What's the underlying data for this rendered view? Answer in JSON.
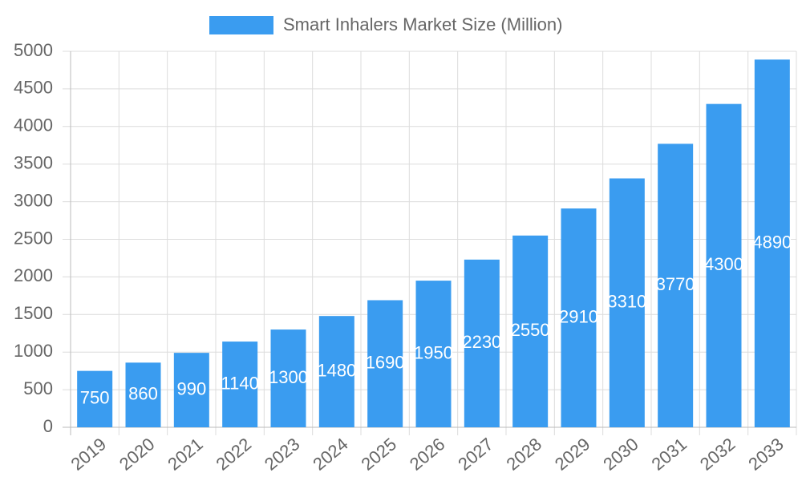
{
  "chart_data": {
    "type": "bar",
    "categories": [
      "2019",
      "2020",
      "2021",
      "2022",
      "2023",
      "2024",
      "2025",
      "2026",
      "2027",
      "2028",
      "2029",
      "2030",
      "2031",
      "2032",
      "2033"
    ],
    "series": [
      {
        "name": "Smart Inhalers Market Size (Million)",
        "color": "#3a9cf0",
        "values": [
          750,
          860,
          990,
          1140,
          1300,
          1480,
          1690,
          1950,
          2230,
          2550,
          2910,
          3310,
          3770,
          4300,
          4890
        ]
      }
    ],
    "ylim": [
      0,
      5000
    ],
    "yticks": [
      0,
      500,
      1000,
      1500,
      2000,
      2500,
      3000,
      3500,
      4000,
      4500,
      5000
    ],
    "grid": true,
    "legend": "top"
  }
}
